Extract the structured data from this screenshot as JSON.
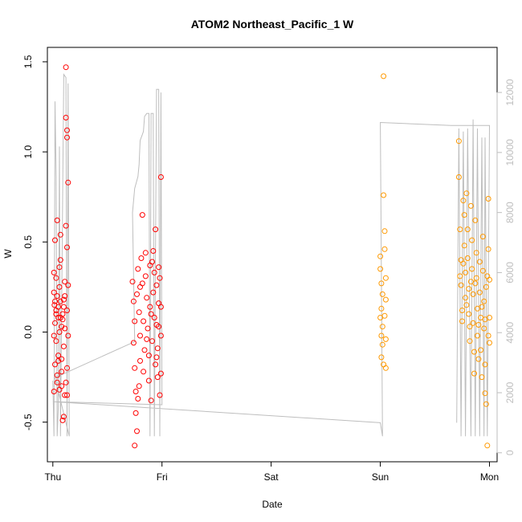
{
  "chart_data": {
    "type": "scatter",
    "title": "ATOM2 Northeast_Pacific_1 W",
    "xlabel": "Date",
    "ylabel": "W",
    "x_ticks": [
      "Thu",
      "Fri",
      "Sat",
      "Sun",
      "Mon"
    ],
    "x_range_days": [
      -0.05,
      4.07
    ],
    "ylim": [
      -0.72,
      1.58
    ],
    "y_ticks": [
      -0.5,
      0.0,
      0.5,
      1.0,
      1.5
    ],
    "y2_ticks": [
      0,
      2000,
      4000,
      6000,
      8000,
      10000,
      12000
    ],
    "y2lim": [
      -300,
      13500
    ],
    "grid": false,
    "colors": {
      "early": "#ff0000",
      "late": "#ff9900",
      "line": "#bebebe"
    },
    "series": [
      {
        "color": "red",
        "points": [
          [
            0.01,
            0.33
          ],
          [
            0.01,
            0.22
          ],
          [
            0.015,
            0.15
          ],
          [
            0.02,
            0.05
          ],
          [
            0.01,
            -0.02
          ],
          [
            0.02,
            -0.18
          ],
          [
            0.01,
            -0.33
          ],
          [
            0.02,
            0.51
          ],
          [
            0.03,
            0.12
          ],
          [
            0.03,
            -0.05
          ],
          [
            0.04,
            0.2
          ],
          [
            0.04,
            0.62
          ],
          [
            0.05,
            0.08
          ],
          [
            0.05,
            -0.13
          ],
          [
            0.06,
            0.25
          ],
          [
            0.06,
            -0.32
          ],
          [
            0.07,
            0.17
          ],
          [
            0.07,
            0.4
          ],
          [
            0.07,
            0.54
          ],
          [
            0.08,
            0.03
          ],
          [
            0.08,
            -0.22
          ],
          [
            0.09,
            0.1
          ],
          [
            0.09,
            -0.49
          ],
          [
            0.1,
            -0.47
          ],
          [
            0.1,
            0.18
          ],
          [
            0.11,
            -0.35
          ],
          [
            0.11,
            0.28
          ],
          [
            0.12,
            1.47
          ],
          [
            0.12,
            1.19
          ],
          [
            0.13,
            1.12
          ],
          [
            0.13,
            1.08
          ],
          [
            0.14,
            0.83
          ],
          [
            0.12,
            0.59
          ],
          [
            0.13,
            0.47
          ],
          [
            0.14,
            0.26
          ],
          [
            0.13,
            0.12
          ],
          [
            0.14,
            -0.02
          ],
          [
            0.13,
            -0.2
          ],
          [
            0.12,
            -0.28
          ],
          [
            0.13,
            -0.35
          ],
          [
            0.06,
            0.0
          ],
          [
            0.05,
            0.14
          ],
          [
            0.04,
            -0.24
          ],
          [
            0.03,
            0.3
          ],
          [
            0.08,
            -0.15
          ],
          [
            0.09,
            0.07
          ],
          [
            0.1,
            -0.08
          ],
          [
            0.11,
            0.2
          ],
          [
            0.02,
            0.17
          ],
          [
            0.03,
            0.1
          ],
          [
            0.04,
            -0.28
          ],
          [
            0.05,
            -0.16
          ],
          [
            0.06,
            0.36
          ],
          [
            0.07,
            0.08
          ],
          [
            0.08,
            -0.3
          ],
          [
            0.1,
            0.14
          ],
          [
            0.11,
            0.02
          ],
          [
            0.73,
            0.28
          ],
          [
            0.74,
            0.17
          ],
          [
            0.75,
            0.06
          ],
          [
            0.74,
            -0.06
          ],
          [
            0.75,
            -0.2
          ],
          [
            0.76,
            -0.33
          ],
          [
            0.76,
            -0.45
          ],
          [
            0.77,
            -0.55
          ],
          [
            0.75,
            -0.63
          ],
          [
            0.77,
            0.21
          ],
          [
            0.78,
            0.35
          ],
          [
            0.79,
            0.11
          ],
          [
            0.8,
            -0.02
          ],
          [
            0.8,
            -0.16
          ],
          [
            0.81,
            0.41
          ],
          [
            0.82,
            0.65
          ],
          [
            0.82,
            0.27
          ],
          [
            0.83,
            0.06
          ],
          [
            0.84,
            -0.1
          ],
          [
            0.85,
            0.31
          ],
          [
            0.85,
            0.44
          ],
          [
            0.86,
            0.19
          ],
          [
            0.87,
            0.02
          ],
          [
            0.88,
            -0.13
          ],
          [
            0.88,
            -0.27
          ],
          [
            0.89,
            0.37
          ],
          [
            0.9,
            0.1
          ],
          [
            0.9,
            -0.38
          ],
          [
            0.91,
            -0.05
          ],
          [
            0.92,
            0.22
          ],
          [
            0.92,
            0.45
          ],
          [
            0.93,
            0.33
          ],
          [
            0.93,
            0.08
          ],
          [
            0.94,
            -0.18
          ],
          [
            0.94,
            0.57
          ],
          [
            0.95,
            0.26
          ],
          [
            0.95,
            0.04
          ],
          [
            0.96,
            -0.09
          ],
          [
            0.96,
            -0.25
          ],
          [
            0.97,
            0.16
          ],
          [
            0.97,
            0.36
          ],
          [
            0.98,
            0.3
          ],
          [
            0.98,
            -0.35
          ],
          [
            0.99,
            0.86
          ],
          [
            0.99,
            0.14
          ],
          [
            0.99,
            -0.02
          ],
          [
            0.99,
            -0.23
          ],
          [
            0.78,
            -0.37
          ],
          [
            0.79,
            -0.3
          ],
          [
            0.8,
            0.25
          ],
          [
            0.83,
            -0.22
          ],
          [
            0.86,
            -0.04
          ],
          [
            0.89,
            0.14
          ],
          [
            0.91,
            0.39
          ],
          [
            0.95,
            -0.14
          ],
          [
            0.97,
            0.03
          ]
        ]
      },
      {
        "color": "orange",
        "points": [
          [
            3.0,
            0.42
          ],
          [
            3.01,
            0.27
          ],
          [
            3.01,
            0.13
          ],
          [
            3.02,
            0.03
          ],
          [
            3.02,
            -0.07
          ],
          [
            3.03,
            -0.18
          ],
          [
            3.01,
            -0.14
          ],
          [
            3.0,
            0.08
          ],
          [
            3.02,
            0.21
          ],
          [
            3.03,
            0.76
          ],
          [
            3.03,
            1.42
          ],
          [
            3.04,
            0.46
          ],
          [
            3.04,
            0.56
          ],
          [
            3.05,
            0.3
          ],
          [
            3.05,
            0.18
          ],
          [
            3.05,
            -0.04
          ],
          [
            3.05,
            -0.2
          ],
          [
            3.0,
            0.35
          ],
          [
            3.01,
            -0.02
          ],
          [
            3.04,
            0.09
          ],
          [
            3.72,
            1.06
          ],
          [
            3.72,
            0.86
          ],
          [
            3.73,
            0.57
          ],
          [
            3.74,
            0.4
          ],
          [
            3.74,
            0.26
          ],
          [
            3.75,
            0.12
          ],
          [
            3.75,
            0.06
          ],
          [
            3.76,
            0.73
          ],
          [
            3.77,
            0.65
          ],
          [
            3.77,
            0.48
          ],
          [
            3.78,
            0.33
          ],
          [
            3.78,
            0.19
          ],
          [
            3.79,
            0.77
          ],
          [
            3.8,
            0.57
          ],
          [
            3.8,
            0.41
          ],
          [
            3.81,
            0.24
          ],
          [
            3.81,
            0.1
          ],
          [
            3.82,
            0.03
          ],
          [
            3.82,
            -0.05
          ],
          [
            3.83,
            0.7
          ],
          [
            3.84,
            0.51
          ],
          [
            3.84,
            0.35
          ],
          [
            3.85,
            0.21
          ],
          [
            3.85,
            0.05
          ],
          [
            3.86,
            -0.11
          ],
          [
            3.86,
            -0.23
          ],
          [
            3.87,
            0.62
          ],
          [
            3.88,
            0.44
          ],
          [
            3.88,
            0.3
          ],
          [
            3.89,
            0.13
          ],
          [
            3.89,
            -0.02
          ],
          [
            3.9,
            -0.15
          ],
          [
            3.91,
            0.39
          ],
          [
            3.91,
            0.22
          ],
          [
            3.92,
            0.08
          ],
          [
            3.92,
            -0.1
          ],
          [
            3.93,
            -0.25
          ],
          [
            3.94,
            0.53
          ],
          [
            3.94,
            0.34
          ],
          [
            3.95,
            0.17
          ],
          [
            3.95,
            0.02
          ],
          [
            3.96,
            -0.18
          ],
          [
            3.96,
            -0.34
          ],
          [
            3.97,
            -0.4
          ],
          [
            3.97,
            0.25
          ],
          [
            3.98,
            -0.63
          ],
          [
            3.99,
            0.74
          ],
          [
            3.99,
            0.46
          ],
          [
            4.0,
            0.29
          ],
          [
            4.0,
            0.08
          ],
          [
            4.0,
            -0.06
          ],
          [
            3.73,
            0.31
          ],
          [
            3.76,
            0.38
          ],
          [
            3.79,
            0.15
          ],
          [
            3.83,
            0.28
          ],
          [
            3.87,
            0.27
          ],
          [
            3.9,
            0.04
          ],
          [
            3.93,
            0.14
          ],
          [
            3.96,
            0.07
          ],
          [
            3.98,
            0.31
          ],
          [
            3.99,
            -0.02
          ]
        ]
      }
    ],
    "secondary_line": {
      "color": "gray",
      "points": [
        [
          0.0,
          2400
        ],
        [
          0.01,
          550
        ],
        [
          0.02,
          11700
        ],
        [
          0.03,
          9200
        ],
        [
          0.04,
          550
        ],
        [
          0.05,
          1500
        ],
        [
          0.06,
          10200
        ],
        [
          0.07,
          550
        ],
        [
          0.1,
          12600
        ],
        [
          0.12,
          12500
        ],
        [
          0.13,
          550
        ],
        [
          0.14,
          12300
        ],
        [
          0.15,
          550
        ],
        [
          0.02,
          2500
        ],
        [
          0.75,
          3700
        ],
        [
          0.73,
          8000
        ],
        [
          0.75,
          8800
        ],
        [
          0.78,
          9200
        ],
        [
          0.79,
          9600
        ],
        [
          0.8,
          10400
        ],
        [
          0.82,
          10600
        ],
        [
          0.83,
          10700
        ],
        [
          0.84,
          11200
        ],
        [
          0.86,
          11300
        ],
        [
          0.88,
          11300
        ],
        [
          0.89,
          550
        ],
        [
          0.9,
          11300
        ],
        [
          0.92,
          11300
        ],
        [
          0.93,
          550
        ],
        [
          0.95,
          12100
        ],
        [
          0.97,
          12100
        ],
        [
          0.98,
          550
        ],
        [
          0.99,
          12000
        ],
        [
          1.0,
          1600
        ],
        [
          0.01,
          1700
        ],
        [
          3.0,
          1000
        ],
        [
          3.02,
          550
        ],
        [
          3.0,
          11000
        ],
        [
          3.65,
          10900
        ],
        [
          4.0,
          10900
        ],
        [
          3.98,
          550
        ],
        [
          3.96,
          10500
        ],
        [
          3.95,
          550
        ],
        [
          3.93,
          10500
        ],
        [
          3.91,
          550
        ],
        [
          3.89,
          10800
        ],
        [
          3.87,
          550
        ],
        [
          3.85,
          11100
        ],
        [
          3.83,
          550
        ],
        [
          3.8,
          10800
        ],
        [
          3.78,
          550
        ],
        [
          3.76,
          10700
        ],
        [
          3.74,
          550
        ],
        [
          3.72,
          10800
        ],
        [
          3.7,
          1000
        ]
      ]
    }
  }
}
